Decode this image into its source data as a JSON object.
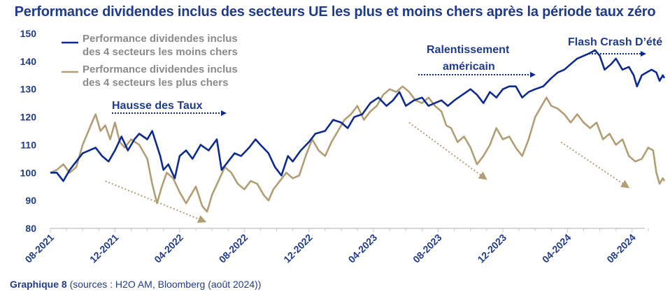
{
  "title": "Performance dividendes inclus des secteurs UE les plus et moins chers après la période taux zéro",
  "caption": {
    "label": "Graphique 8",
    "source": " (sources : H2O AM, Bloomberg (août 2024))"
  },
  "colors": {
    "blue": "#0c2a92",
    "tan": "#b39d72",
    "text": "#1f3b8c",
    "axis": "#c8c8c8"
  },
  "chart_data": {
    "type": "line",
    "title": "Performance dividendes inclus des secteurs UE les plus et moins chers après la période taux zéro",
    "xlabel": "",
    "ylabel": "",
    "ylim": [
      80,
      150
    ],
    "yticks": [
      "80",
      "90",
      "100",
      "110",
      "120",
      "130",
      "140",
      "150"
    ],
    "xlim": [
      0,
      36.7
    ],
    "xtick_labels": [
      "08-2021",
      "12-2021",
      "04-2022",
      "08-2022",
      "12-2022",
      "04-2023",
      "08-2023",
      "12-2023",
      "04-2024",
      "08-2024"
    ],
    "xtick_months": [
      0,
      4,
      8,
      12,
      16,
      20,
      24,
      28,
      32,
      36
    ],
    "series": [
      {
        "name": "Performance dividendes inclus des 4 secteurs les moins chers",
        "legend_lines": [
          "Performance dividendes inclus",
          "des 4 secteurs les moins chers"
        ],
        "color": "#0c2a92",
        "points": [
          [
            0,
            100
          ],
          [
            0.4,
            100
          ],
          [
            0.8,
            97
          ],
          [
            1.2,
            101
          ],
          [
            1.6,
            104
          ],
          [
            2.0,
            107
          ],
          [
            2.4,
            108
          ],
          [
            2.8,
            109
          ],
          [
            3.2,
            106
          ],
          [
            3.6,
            104
          ],
          [
            4.0,
            108
          ],
          [
            4.4,
            113
          ],
          [
            4.8,
            108
          ],
          [
            5.2,
            112
          ],
          [
            5.5,
            114
          ],
          [
            6.0,
            112
          ],
          [
            6.3,
            115
          ],
          [
            6.8,
            106
          ],
          [
            7.0,
            101
          ],
          [
            7.3,
            103
          ],
          [
            7.7,
            98
          ],
          [
            8.0,
            106
          ],
          [
            8.4,
            108
          ],
          [
            8.8,
            105
          ],
          [
            9.3,
            110
          ],
          [
            9.8,
            108
          ],
          [
            10.3,
            112
          ],
          [
            10.6,
            101
          ],
          [
            11.0,
            104
          ],
          [
            11.4,
            107
          ],
          [
            11.8,
            106
          ],
          [
            12.3,
            109
          ],
          [
            12.7,
            112
          ],
          [
            13.0,
            110
          ],
          [
            13.5,
            107
          ],
          [
            13.9,
            102
          ],
          [
            14.3,
            99
          ],
          [
            14.7,
            106
          ],
          [
            15.0,
            104
          ],
          [
            15.5,
            108
          ],
          [
            16.0,
            111
          ],
          [
            16.4,
            114
          ],
          [
            17.0,
            115
          ],
          [
            17.5,
            119
          ],
          [
            18.0,
            118
          ],
          [
            18.4,
            116
          ],
          [
            18.8,
            120
          ],
          [
            19.3,
            121
          ],
          [
            19.8,
            125
          ],
          [
            20.3,
            127
          ],
          [
            20.8,
            124
          ],
          [
            21.2,
            126
          ],
          [
            21.6,
            129
          ],
          [
            22.0,
            124
          ],
          [
            22.5,
            126
          ],
          [
            23.0,
            127
          ],
          [
            23.4,
            124
          ],
          [
            23.8,
            125
          ],
          [
            24.2,
            126
          ],
          [
            24.6,
            124
          ],
          [
            25.0,
            126
          ],
          [
            25.5,
            128
          ],
          [
            26.0,
            130
          ],
          [
            26.4,
            128
          ],
          [
            26.8,
            125
          ],
          [
            27.2,
            129
          ],
          [
            27.6,
            127
          ],
          [
            28.0,
            130
          ],
          [
            28.4,
            131
          ],
          [
            28.8,
            131
          ],
          [
            29.2,
            127
          ],
          [
            29.6,
            129
          ],
          [
            30.0,
            130
          ],
          [
            30.5,
            131
          ],
          [
            31.0,
            134
          ],
          [
            31.4,
            136
          ],
          [
            31.8,
            137
          ],
          [
            32.2,
            139
          ],
          [
            32.6,
            141
          ],
          [
            33.0,
            142
          ],
          [
            33.4,
            143
          ],
          [
            33.7,
            144
          ],
          [
            34.0,
            142
          ],
          [
            34.3,
            137
          ],
          [
            34.7,
            139
          ],
          [
            35.0,
            141
          ],
          [
            35.4,
            137
          ],
          [
            35.8,
            138
          ],
          [
            36.1,
            135
          ],
          [
            36.3,
            131
          ],
          [
            36.6,
            135
          ],
          [
            36.9,
            136
          ],
          [
            37.2,
            137
          ],
          [
            37.5,
            136
          ],
          [
            37.7,
            133
          ],
          [
            37.9,
            135
          ],
          [
            38.0,
            134
          ]
        ]
      },
      {
        "name": "Performance dividendes inclus des 4 secteurs les plus chers",
        "legend_lines": [
          "Performance dividendes inclus",
          "des 4 secteurs les plus chers"
        ],
        "color": "#b39d72",
        "points": [
          [
            0,
            100
          ],
          [
            0.4,
            101
          ],
          [
            0.8,
            103
          ],
          [
            1.2,
            100
          ],
          [
            1.6,
            102
          ],
          [
            2.0,
            110
          ],
          [
            2.5,
            117
          ],
          [
            2.8,
            121
          ],
          [
            3.1,
            115
          ],
          [
            3.4,
            117
          ],
          [
            3.7,
            112
          ],
          [
            4.0,
            118
          ],
          [
            4.3,
            111
          ],
          [
            4.6,
            109
          ],
          [
            5.0,
            112
          ],
          [
            5.5,
            110
          ],
          [
            6.0,
            105
          ],
          [
            6.3,
            96
          ],
          [
            6.6,
            89
          ],
          [
            6.9,
            95
          ],
          [
            7.2,
            100
          ],
          [
            7.6,
            98
          ],
          [
            8.0,
            93
          ],
          [
            8.4,
            89
          ],
          [
            8.7,
            92
          ],
          [
            9.0,
            95
          ],
          [
            9.4,
            88
          ],
          [
            9.7,
            86
          ],
          [
            10.0,
            92
          ],
          [
            10.4,
            97
          ],
          [
            10.8,
            102
          ],
          [
            11.2,
            100
          ],
          [
            11.6,
            96
          ],
          [
            12.0,
            94
          ],
          [
            12.4,
            97
          ],
          [
            12.8,
            96
          ],
          [
            13.2,
            92
          ],
          [
            13.5,
            90
          ],
          [
            13.8,
            94
          ],
          [
            14.2,
            97
          ],
          [
            14.6,
            100
          ],
          [
            15.0,
            98
          ],
          [
            15.4,
            99
          ],
          [
            15.8,
            106
          ],
          [
            16.2,
            112
          ],
          [
            16.6,
            108
          ],
          [
            17.0,
            106
          ],
          [
            17.4,
            111
          ],
          [
            17.8,
            115
          ],
          [
            18.2,
            119
          ],
          [
            18.6,
            121
          ],
          [
            19.0,
            124
          ],
          [
            19.4,
            119
          ],
          [
            19.8,
            122
          ],
          [
            20.2,
            124
          ],
          [
            20.6,
            128
          ],
          [
            21.0,
            130
          ],
          [
            21.4,
            129
          ],
          [
            21.8,
            131
          ],
          [
            22.2,
            129
          ],
          [
            22.6,
            126
          ],
          [
            23.0,
            125
          ],
          [
            23.4,
            127
          ],
          [
            23.8,
            124
          ],
          [
            24.2,
            122
          ],
          [
            24.5,
            117
          ],
          [
            24.8,
            116
          ],
          [
            25.2,
            111
          ],
          [
            25.6,
            113
          ],
          [
            26.0,
            109
          ],
          [
            26.4,
            103
          ],
          [
            26.8,
            106
          ],
          [
            27.2,
            110
          ],
          [
            27.6,
            116
          ],
          [
            28.0,
            112
          ],
          [
            28.4,
            113
          ],
          [
            28.8,
            109
          ],
          [
            29.2,
            106
          ],
          [
            29.6,
            112
          ],
          [
            30.0,
            120
          ],
          [
            30.4,
            124
          ],
          [
            30.7,
            127
          ],
          [
            31.0,
            124
          ],
          [
            31.4,
            123
          ],
          [
            31.8,
            121
          ],
          [
            32.2,
            118
          ],
          [
            32.6,
            121
          ],
          [
            33.0,
            118
          ],
          [
            33.4,
            116
          ],
          [
            33.8,
            118
          ],
          [
            34.2,
            112
          ],
          [
            34.6,
            114
          ],
          [
            35.0,
            110
          ],
          [
            35.4,
            112
          ],
          [
            35.8,
            106
          ],
          [
            36.2,
            104
          ],
          [
            36.6,
            105
          ],
          [
            37.0,
            109
          ],
          [
            37.3,
            108
          ],
          [
            37.5,
            100
          ],
          [
            37.7,
            96
          ],
          [
            37.9,
            98
          ],
          [
            38.0,
            97
          ]
        ]
      }
    ],
    "annotations": [
      {
        "text": "Hausse des Taux",
        "arrow": "blue-right"
      },
      {
        "text": "Ralentissement",
        "arrow": "none"
      },
      {
        "text": "américain",
        "arrow": "blue-right"
      },
      {
        "text": "Flash Crash D’été",
        "arrow": "blue-right"
      }
    ]
  }
}
